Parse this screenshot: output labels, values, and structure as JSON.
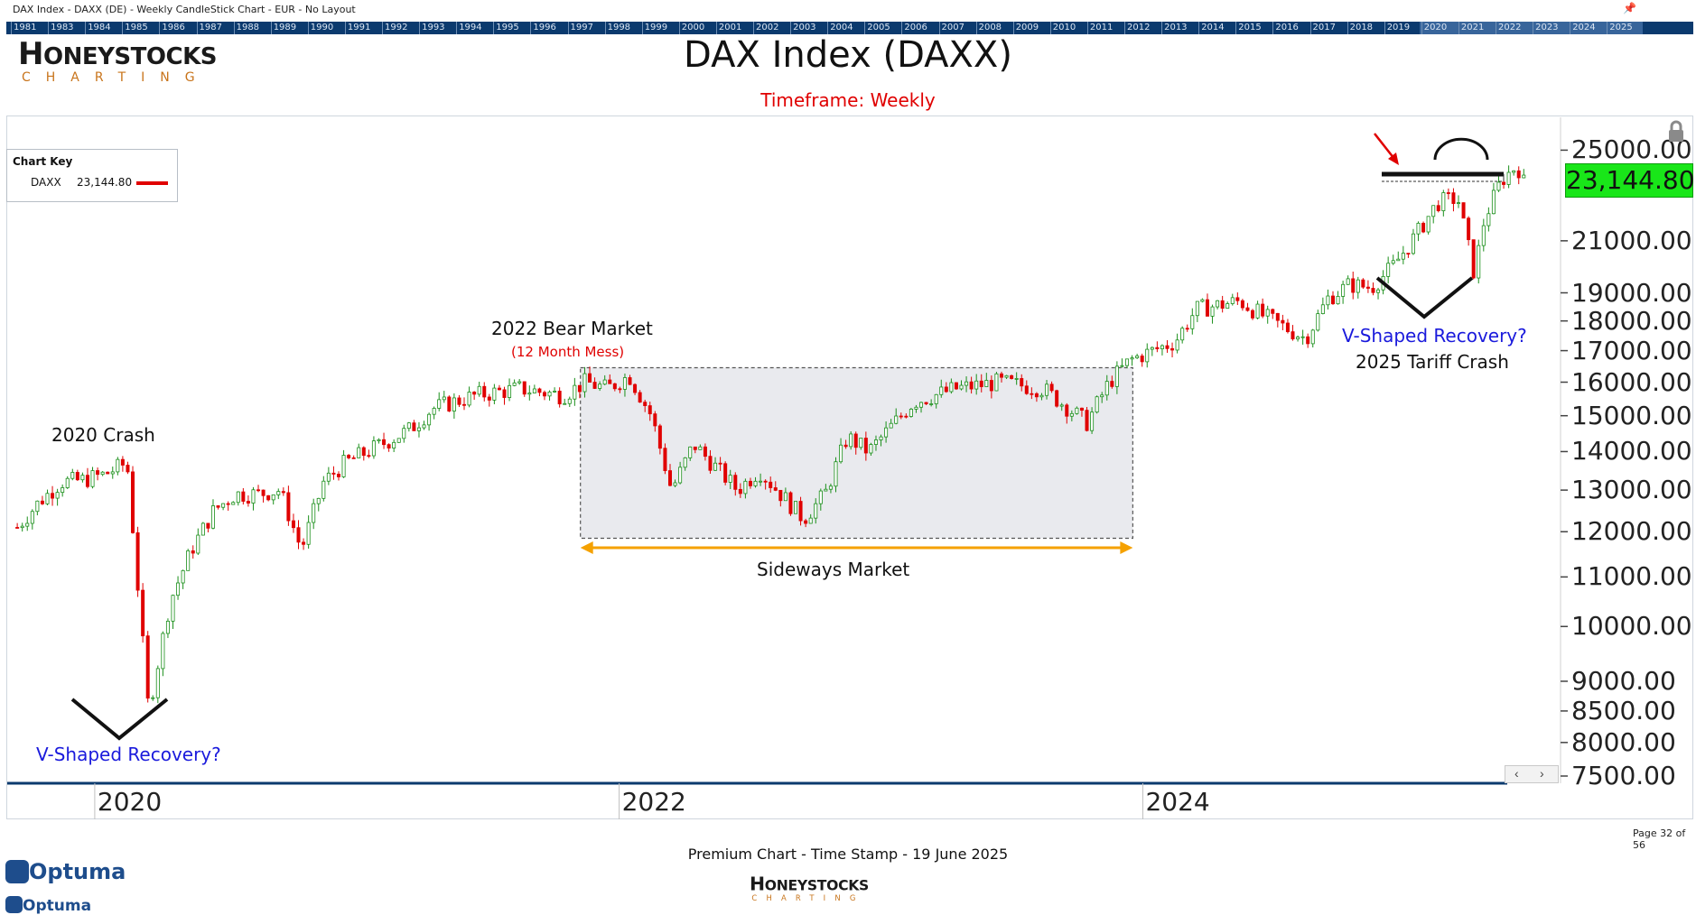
{
  "window": {
    "title": "DAX Index - DAXX (DE) - Weekly CandleStick Chart - EUR - No Layout"
  },
  "year_strip": [
    "1981",
    "1983",
    "1984",
    "1985",
    "1986",
    "1987",
    "1988",
    "1989",
    "1990",
    "1991",
    "1992",
    "1993",
    "1994",
    "1995",
    "1996",
    "1997",
    "1998",
    "1999",
    "2000",
    "2001",
    "2002",
    "2003",
    "2004",
    "2005",
    "2006",
    "2007",
    "2008",
    "2009",
    "2010",
    "2011",
    "2012",
    "2013",
    "2014",
    "2015",
    "2016",
    "2017",
    "2018",
    "2019",
    "2020",
    "2021",
    "2022",
    "2023",
    "2024",
    "2025"
  ],
  "logo": {
    "top": "ONEYSTOCKS",
    "initial": "H",
    "sub": "CHARTING"
  },
  "header": {
    "title": "DAX Index (DAXX)",
    "subtitle": "Timeframe: Weekly"
  },
  "chart_key": {
    "title": "Chart Key",
    "name": "DAXX",
    "value": "23,144.80",
    "color": "#e00000"
  },
  "annotations": {
    "crash_2020": "2020 Crash",
    "v_recovery_left": "V-Shaped Recovery?",
    "bear_2022": "2022 Bear Market",
    "bear_2022_sub": "(12 Month Mess)",
    "sideways": "Sideways Market",
    "v_recovery_right": "V-Shaped Recovery?",
    "tariff_crash": "2025 Tariff Crash"
  },
  "colors": {
    "up": "#1a8f1a",
    "down": "#e00000",
    "annotation_blue": "#1a1adc",
    "sideways_arrow": "#f5a100",
    "price_box": "#19e619"
  },
  "footer": {
    "timestamp": "Premium Chart - Time Stamp - 19 June 2025",
    "page": "Page 32 of 56",
    "brand": "Optuma"
  },
  "chart_data": {
    "type": "candlestick",
    "title": "DAX Index (DAXX)",
    "subtitle": "Timeframe: Weekly",
    "x_tick_labels": [
      "2020",
      "2022",
      "2024"
    ],
    "y_tick_labels": [
      "25000.00",
      "21000.00",
      "19000.00",
      "18000.00",
      "17000.00",
      "16000.00",
      "15000.00",
      "14000.00",
      "13000.00",
      "12000.00",
      "11000.00",
      "10000.00",
      "9000.00",
      "8500.00",
      "8000.00",
      "7500.00"
    ],
    "y_scale": "log",
    "ylim": [
      7500,
      25500
    ],
    "xlim": [
      "2019-09",
      "2025-07"
    ],
    "last_value": "23,144.80",
    "series": [
      {
        "name": "DAXX",
        "ohlc_weekly_closes": [
          {
            "x": "2019-09",
            "y": 12100
          },
          {
            "x": "2019-10",
            "y": 12700
          },
          {
            "x": "2019-11",
            "y": 13200
          },
          {
            "x": "2019-12",
            "y": 13250
          },
          {
            "x": "2020-01",
            "y": 13400
          },
          {
            "x": "2020-02",
            "y": 13700
          },
          {
            "x": "2020-02-24",
            "y": 11900
          },
          {
            "x": "2020-03-16",
            "y": 8500
          },
          {
            "x": "2020-04",
            "y": 10500
          },
          {
            "x": "2020-05",
            "y": 11600
          },
          {
            "x": "2020-06",
            "y": 12500
          },
          {
            "x": "2020-07",
            "y": 12900
          },
          {
            "x": "2020-08",
            "y": 12900
          },
          {
            "x": "2020-09",
            "y": 13000
          },
          {
            "x": "2020-10",
            "y": 11600
          },
          {
            "x": "2020-11",
            "y": 13200
          },
          {
            "x": "2020-12",
            "y": 13700
          },
          {
            "x": "2021-01",
            "y": 14000
          },
          {
            "x": "2021-03",
            "y": 14600
          },
          {
            "x": "2021-04",
            "y": 15200
          },
          {
            "x": "2021-06",
            "y": 15600
          },
          {
            "x": "2021-08",
            "y": 15800
          },
          {
            "x": "2021-10",
            "y": 15600
          },
          {
            "x": "2021-11",
            "y": 16000
          },
          {
            "x": "2021-12",
            "y": 15800
          },
          {
            "x": "2022-01",
            "y": 16200
          },
          {
            "x": "2022-02",
            "y": 15000
          },
          {
            "x": "2022-03",
            "y": 13000
          },
          {
            "x": "2022-04",
            "y": 14200
          },
          {
            "x": "2022-06",
            "y": 13000
          },
          {
            "x": "2022-07",
            "y": 13500
          },
          {
            "x": "2022-09",
            "y": 12300
          },
          {
            "x": "2022-10",
            "y": 12900
          },
          {
            "x": "2022-11",
            "y": 14400
          },
          {
            "x": "2022-12",
            "y": 14000
          },
          {
            "x": "2023-02",
            "y": 15400
          },
          {
            "x": "2023-04",
            "y": 15800
          },
          {
            "x": "2023-06",
            "y": 16000
          },
          {
            "x": "2023-08",
            "y": 15800
          },
          {
            "x": "2023-10",
            "y": 14800
          },
          {
            "x": "2023-11",
            "y": 16000
          },
          {
            "x": "2023-12",
            "y": 16700
          },
          {
            "x": "2024-02",
            "y": 17300
          },
          {
            "x": "2024-03",
            "y": 18400
          },
          {
            "x": "2024-05",
            "y": 18700
          },
          {
            "x": "2024-06",
            "y": 18200
          },
          {
            "x": "2024-08",
            "y": 17400
          },
          {
            "x": "2024-09",
            "y": 18800
          },
          {
            "x": "2024-10",
            "y": 19300
          },
          {
            "x": "2024-11",
            "y": 19200
          },
          {
            "x": "2024-12",
            "y": 20000
          },
          {
            "x": "2025-01",
            "y": 21200
          },
          {
            "x": "2025-02",
            "y": 22600
          },
          {
            "x": "2025-03",
            "y": 22800
          },
          {
            "x": "2025-04-07",
            "y": 19700
          },
          {
            "x": "2025-04-21",
            "y": 21900
          },
          {
            "x": "2025-05",
            "y": 23600
          },
          {
            "x": "2025-06-06",
            "y": 24300
          },
          {
            "x": "2025-06-19",
            "y": 23144.8
          }
        ]
      }
    ],
    "grid": false,
    "legend": "top-left"
  }
}
